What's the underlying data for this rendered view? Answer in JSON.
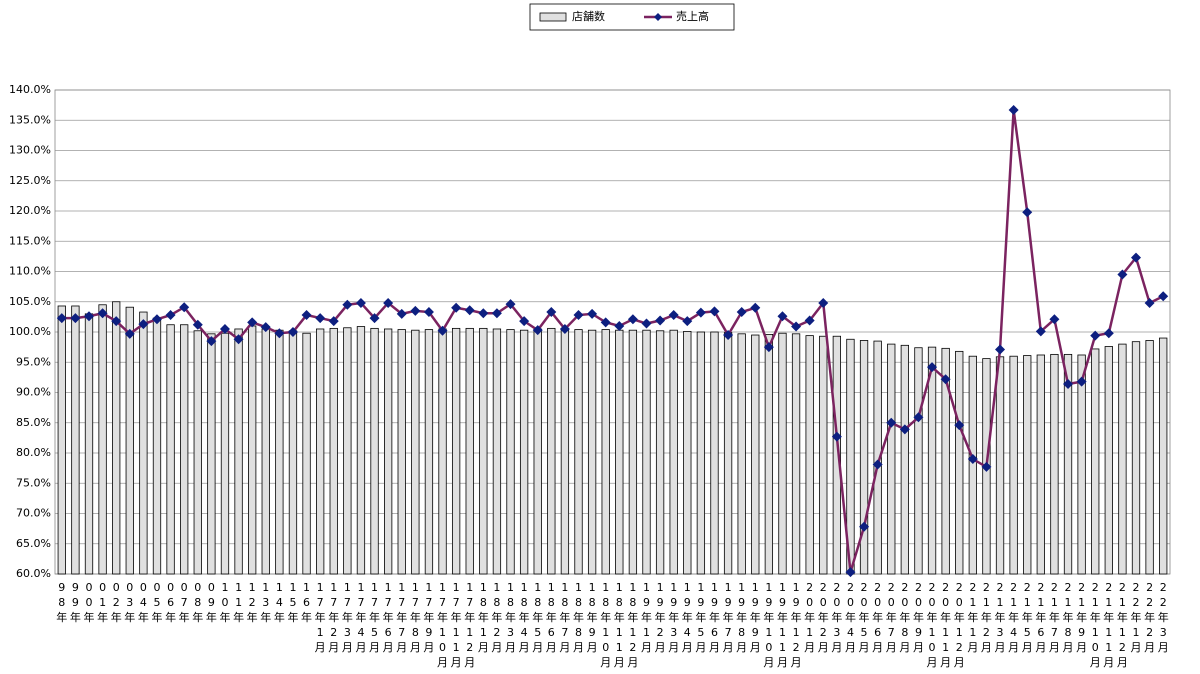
{
  "chart_data": {
    "type": "bar",
    "legend": "top",
    "grid": true,
    "categories": [
      "98年",
      "99年",
      "00年",
      "01年",
      "02年",
      "03年",
      "04年",
      "05年",
      "06年",
      "07年",
      "08年",
      "09年",
      "10年",
      "11年",
      "12年",
      "13年",
      "14年",
      "15年",
      "16年",
      "17年1月",
      "17年2月",
      "17年3月",
      "17年4月",
      "17年5月",
      "17年6月",
      "17年7月",
      "17年8月",
      "17年9月",
      "17年10月",
      "17年11月",
      "17年12月",
      "18年1月",
      "18年2月",
      "18年3月",
      "18年4月",
      "18年5月",
      "18年6月",
      "18年7月",
      "18年8月",
      "18年9月",
      "18年10月",
      "18年11月",
      "18年12月",
      "19年1月",
      "19年2月",
      "19年3月",
      "19年4月",
      "19年5月",
      "19年6月",
      "19年7月",
      "19年8月",
      "19年9月",
      "19年10月",
      "19年11月",
      "19年12月",
      "20年1月",
      "20年2月",
      "20年3月",
      "20年4月",
      "20年5月",
      "20年6月",
      "20年7月",
      "20年8月",
      "20年9月",
      "20年10月",
      "20年11月",
      "20年12月",
      "21年1月",
      "21年2月",
      "21年3月",
      "21年4月",
      "21年5月",
      "21年6月",
      "21年7月",
      "21年8月",
      "21年9月",
      "21年10月",
      "21年11月",
      "21年12月",
      "22年1月",
      "22年2月",
      "22年3月"
    ],
    "series": [
      {
        "name": "店舗数",
        "type": "bar",
        "color": "#e0e0e0",
        "values": [
          104.3,
          104.3,
          103.0,
          104.5,
          105.0,
          104.1,
          103.3,
          102.3,
          101.2,
          101.2,
          100.2,
          99.7,
          99.8,
          100.5,
          101.0,
          100.5,
          100.3,
          100.2,
          99.8,
          100.5,
          100.6,
          100.7,
          100.9,
          100.6,
          100.5,
          100.4,
          100.3,
          100.4,
          100.5,
          100.6,
          100.6,
          100.6,
          100.5,
          100.4,
          100.3,
          100.5,
          100.6,
          100.5,
          100.4,
          100.3,
          100.4,
          100.3,
          100.3,
          100.3,
          100.2,
          100.3,
          100.1,
          100.0,
          100.0,
          99.9,
          99.7,
          99.5,
          99.6,
          99.8,
          99.7,
          99.4,
          99.3,
          99.3,
          98.8,
          98.6,
          98.5,
          98.0,
          97.8,
          97.4,
          97.5,
          97.3,
          96.8,
          96.0,
          95.6,
          95.9,
          96.0,
          96.1,
          96.2,
          96.3,
          96.3,
          96.2,
          97.2,
          97.6,
          98.0,
          98.4,
          98.6,
          99.0
        ]
      },
      {
        "name": "売上高",
        "type": "line",
        "color": "#7b2360",
        "marker_color": "#0d1f80",
        "values": [
          102.3,
          102.3,
          102.6,
          103.1,
          101.8,
          99.7,
          101.3,
          102.1,
          102.8,
          104.1,
          101.2,
          98.5,
          100.5,
          98.8,
          101.6,
          100.8,
          99.8,
          100.0,
          102.8,
          102.3,
          101.8,
          104.5,
          104.8,
          102.3,
          104.8,
          103.0,
          103.5,
          103.3,
          100.2,
          104.0,
          103.6,
          103.1,
          103.1,
          104.6,
          101.8,
          100.3,
          103.3,
          100.5,
          102.8,
          103.0,
          101.6,
          101.0,
          102.1,
          101.4,
          101.9,
          102.8,
          101.8,
          103.2,
          103.4,
          99.5,
          103.3,
          104.0,
          97.5,
          102.6,
          100.9,
          101.9,
          104.8,
          82.7,
          60.3,
          67.8,
          78.1,
          85.0,
          83.9,
          85.9,
          94.2,
          92.2,
          84.6,
          79.0,
          77.7,
          97.1,
          136.7,
          119.8,
          100.1,
          102.1,
          91.4,
          91.8,
          99.4,
          99.8,
          109.5,
          112.3,
          104.8,
          105.9
        ]
      }
    ],
    "ylim": [
      60,
      140
    ],
    "yticks": [
      {
        "value": 60,
        "label": "60.0%"
      },
      {
        "value": 65,
        "label": "65.0%"
      },
      {
        "value": 70,
        "label": "70.0%"
      },
      {
        "value": 75,
        "label": "75.0%"
      },
      {
        "value": 80,
        "label": "80.0%"
      },
      {
        "value": 85,
        "label": "85.0%"
      },
      {
        "value": 90,
        "label": "90.0%"
      },
      {
        "value": 95,
        "label": "95.0%"
      },
      {
        "value": 100,
        "label": "100.0%"
      },
      {
        "value": 105,
        "label": "105.0%"
      },
      {
        "value": 110,
        "label": "110.0%"
      },
      {
        "value": 115,
        "label": "115.0%"
      },
      {
        "value": 120,
        "label": "120.0%"
      },
      {
        "value": 125,
        "label": "125.0%"
      },
      {
        "value": 130,
        "label": "130.0%"
      },
      {
        "value": 135,
        "label": "135.0%"
      },
      {
        "value": 140,
        "label": "140.0%"
      }
    ]
  }
}
